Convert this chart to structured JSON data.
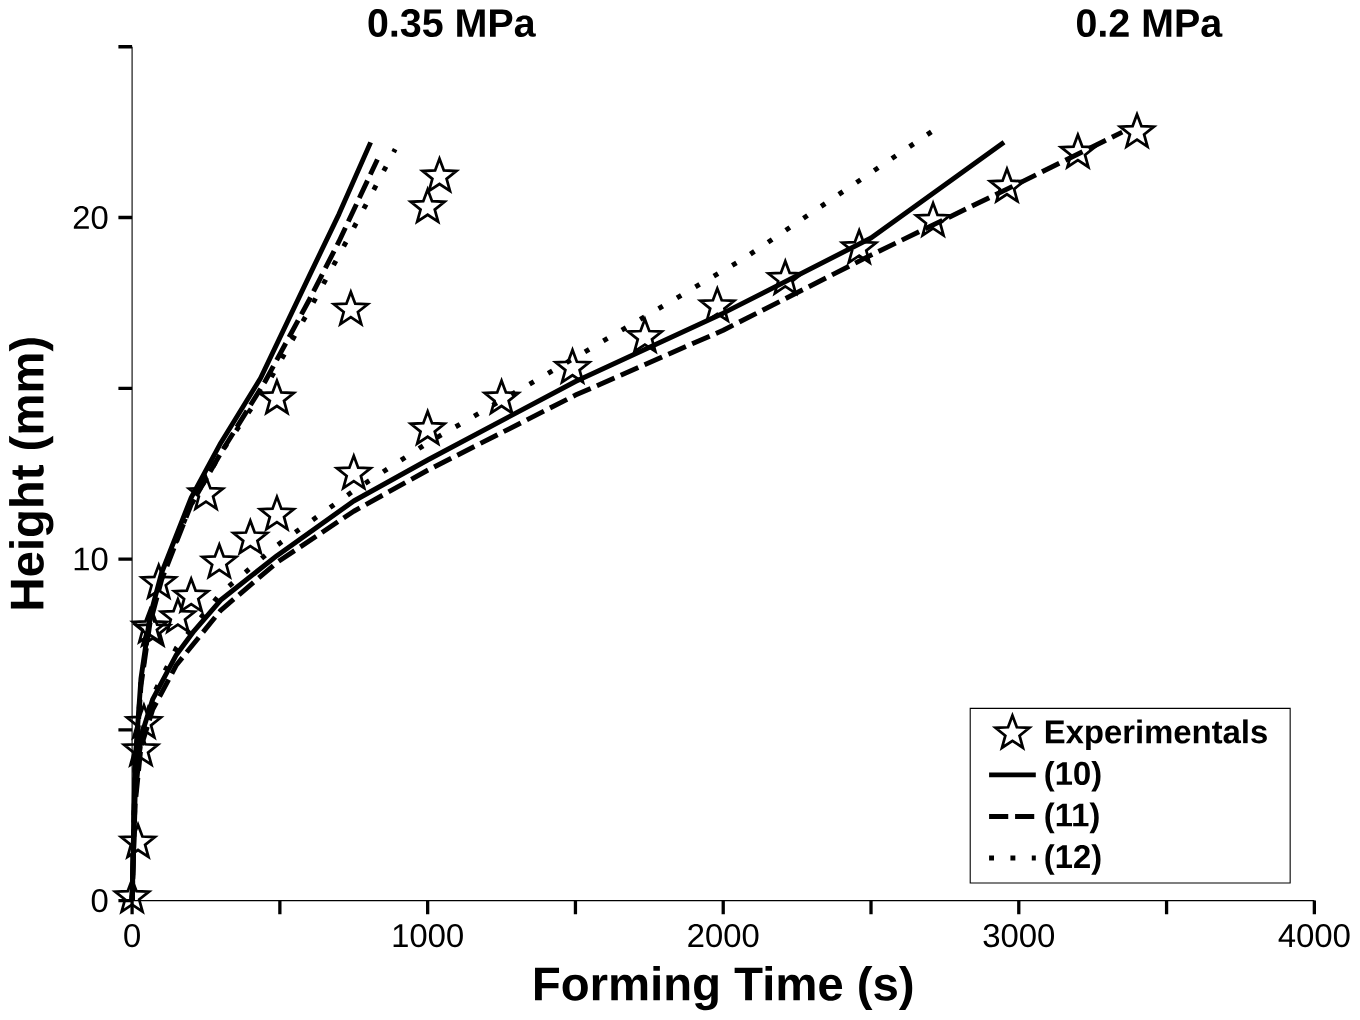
{
  "chart_data": {
    "type": "line",
    "xlabel": "Forming Time (s)",
    "ylabel": "Height (mm)",
    "xlim": [
      0,
      4000
    ],
    "ylim": [
      0,
      25
    ],
    "xticks": [
      0,
      {
        "value": 500,
        "label": null
      },
      1000,
      {
        "value": 1500,
        "label": null
      },
      2000,
      {
        "value": 2500,
        "label": null
      },
      3000,
      {
        "value": 3500,
        "label": null
      },
      4000
    ],
    "yticks": [
      0,
      {
        "value": 5,
        "label": null
      },
      10,
      {
        "value": 15,
        "label": null
      },
      20,
      {
        "value": 25,
        "label": null
      }
    ],
    "grid": false,
    "legend": "bottom right",
    "annotations": [
      "0.35 MPa",
      "0.2 MPa"
    ],
    "series": [
      {
        "name": "Experimentals",
        "type": "scatter",
        "marker": "star",
        "color": "#000000",
        "x": [
          0,
          20,
          30,
          40,
          60,
          90,
          250,
          490,
          740,
          1000,
          1040
        ],
        "values": [
          0.1,
          1.7,
          4.4,
          5.2,
          8.0,
          9.3,
          11.9,
          14.7,
          17.3,
          20.3,
          21.2
        ]
      },
      {
        "type": "scatter",
        "marker": "star",
        "color": "#000000",
        "x": [
          70,
          155,
          200,
          295,
          400,
          490,
          750,
          1000,
          1250,
          1490,
          1735,
          1980,
          2210,
          2460,
          2710,
          2960,
          3200,
          3400
        ],
        "values": [
          7.9,
          8.3,
          8.9,
          9.9,
          10.6,
          11.3,
          12.5,
          13.8,
          14.7,
          15.6,
          16.5,
          17.4,
          18.2,
          19.1,
          19.9,
          20.9,
          21.9,
          22.5
        ]
      },
      {
        "name": "(10)",
        "line_style": "solid",
        "color": "#000000",
        "x": [
          0,
          10,
          30,
          60,
          100,
          200,
          300,
          435,
          600,
          700,
          807
        ],
        "values": [
          0,
          4,
          6.5,
          8.3,
          9.6,
          11.8,
          13.4,
          15.3,
          18.3,
          20.1,
          22.2
        ]
      },
      {
        "name": "(11)",
        "line_style": "dashed",
        "color": "#000000",
        "x": [
          0,
          10,
          30,
          60,
          100,
          200,
          300,
          450,
          600,
          700,
          830
        ],
        "values": [
          0,
          3.8,
          6.3,
          8.1,
          9.4,
          11.6,
          13.1,
          15.2,
          17.6,
          19.3,
          21.7
        ]
      },
      {
        "name": "(12)",
        "line_style": "dotted",
        "color": "#000000",
        "x": [
          0,
          10,
          30,
          60,
          100,
          200,
          300,
          450,
          600,
          750,
          890
        ],
        "values": [
          0,
          3.9,
          6.4,
          8.2,
          9.5,
          11.6,
          13.1,
          15.0,
          17.3,
          19.7,
          22.0
        ]
      },
      {
        "line_style": "solid",
        "color": "#000000",
        "x": [
          0,
          10,
          30,
          70,
          150,
          210,
          300,
          490,
          750,
          1000,
          1500,
          2000,
          2500,
          2950
        ],
        "values": [
          0,
          3,
          4.8,
          5.9,
          7.2,
          7.9,
          8.8,
          10.1,
          11.7,
          12.9,
          15.2,
          17.2,
          19.4,
          22.2
        ]
      },
      {
        "line_style": "dashed",
        "color": "#000000",
        "x": [
          0,
          10,
          30,
          70,
          150,
          300,
          490,
          750,
          1000,
          1500,
          2000,
          2500,
          3000,
          3350
        ],
        "values": [
          0,
          2.8,
          4.5,
          5.6,
          6.9,
          8.5,
          9.9,
          11.4,
          12.6,
          14.8,
          16.7,
          18.9,
          21.0,
          22.5
        ]
      },
      {
        "line_style": "dotted",
        "color": "#000000",
        "x": [
          0,
          10,
          30,
          70,
          150,
          300,
          490,
          750,
          1000,
          1420,
          2070,
          2720
        ],
        "values": [
          0,
          3,
          4.8,
          6.0,
          7.4,
          9.0,
          10.4,
          12.0,
          13.4,
          15.5,
          18.8,
          22.6
        ]
      }
    ]
  }
}
